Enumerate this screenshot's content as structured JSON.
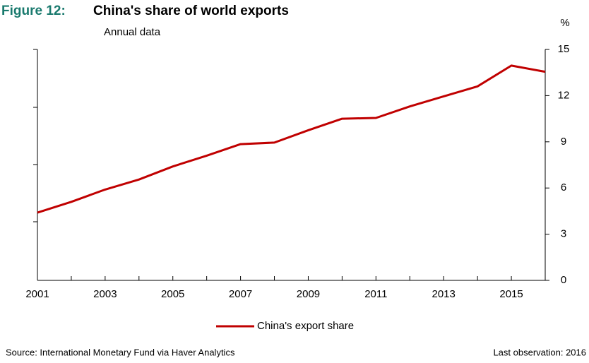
{
  "chart_data": {
    "type": "line",
    "figure_label": "Figure 12:",
    "title": "China's share of world exports",
    "subtitle": "Annual data",
    "y_unit": "%",
    "x": [
      2001,
      2002,
      2003,
      2004,
      2005,
      2006,
      2007,
      2008,
      2009,
      2010,
      2011,
      2012,
      2013,
      2014,
      2015,
      2016
    ],
    "series": [
      {
        "name": "China's export share",
        "color": "#c00000",
        "values": [
          4.4,
          5.1,
          5.9,
          6.55,
          7.4,
          8.1,
          8.85,
          8.95,
          9.75,
          10.5,
          10.55,
          11.3,
          11.95,
          12.6,
          13.95,
          13.55
        ]
      }
    ],
    "xlim": [
      2001,
      2016
    ],
    "xticks": [
      2001,
      2003,
      2005,
      2007,
      2009,
      2011,
      2013,
      2015
    ],
    "ylim": [
      0,
      15
    ],
    "yticks": [
      0,
      3,
      6,
      9,
      12,
      15
    ],
    "source": "Source: International Monetary Fund via Haver Analytics",
    "note": "Last observation: 2016"
  }
}
